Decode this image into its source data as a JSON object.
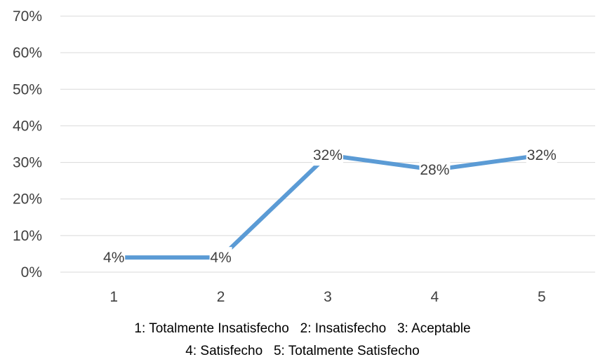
{
  "chart_data": {
    "type": "line",
    "categories": [
      "1",
      "2",
      "3",
      "4",
      "5"
    ],
    "series": [
      {
        "values": [
          4,
          4,
          32,
          28,
          32
        ],
        "color": "#5b9bd5"
      }
    ],
    "data_labels": [
      "4%",
      "4%",
      "32%",
      "28%",
      "32%"
    ],
    "ylim": [
      0,
      70
    ],
    "y_ticks": [
      "0%",
      "10%",
      "20%",
      "30%",
      "40%",
      "50%",
      "60%",
      "70%"
    ],
    "grid": true,
    "gridline_color": "#d9d9d9",
    "legend_text": [
      "1: Totalmente Insatisfecho   2: Insatisfecho   3: Aceptable",
      "4: Satisfecho   5: Totalmente Satisfecho"
    ]
  }
}
